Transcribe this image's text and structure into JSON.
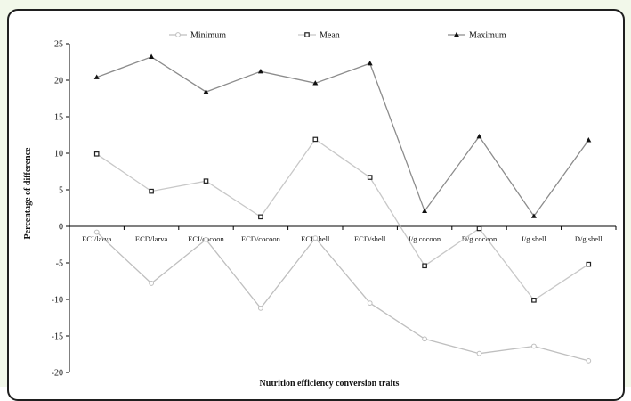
{
  "chart_data": {
    "type": "line",
    "categories": [
      "ECI/larva",
      "ECD/larva",
      "ECI/cocoon",
      "ECD/cocoon",
      "ECI/shell",
      "ECD/shell",
      "I/g cocoon",
      "D/g cocoon",
      "I/g  shell",
      "D/g shell"
    ],
    "series": [
      {
        "name": "Minimum",
        "values": [
          -0.8,
          -7.8,
          -1.8,
          -11.2,
          -1.6,
          -10.5,
          -15.4,
          -17.4,
          -16.4,
          -18.4
        ],
        "color": "#bfbfbf",
        "marker": "circle"
      },
      {
        "name": "Mean",
        "values": [
          9.9,
          4.8,
          6.2,
          1.3,
          11.9,
          6.7,
          -5.4,
          -0.3,
          -10.1,
          -5.2
        ],
        "color": "#c8c8c8",
        "marker": "square"
      },
      {
        "name": "Maximum",
        "values": [
          20.4,
          23.2,
          18.4,
          21.2,
          19.6,
          22.3,
          2.1,
          12.3,
          1.4,
          11.8
        ],
        "color": "#8c8c8c",
        "marker": "triangle"
      }
    ],
    "title": "",
    "xlabel": "Nutrition efficiency conversion traits",
    "ylabel": "Percentage of difference",
    "ylim": [
      -20,
      25
    ],
    "yticks": [
      25,
      20,
      15,
      10,
      5,
      0,
      -5,
      -10,
      -15,
      -20
    ],
    "grid": false,
    "legend_position": "top"
  }
}
